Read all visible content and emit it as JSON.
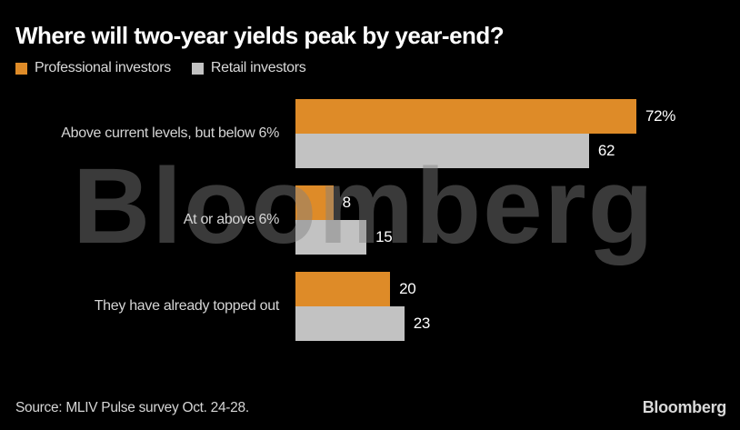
{
  "watermark": {
    "text": "Bloomberg"
  },
  "footer": {
    "source": "Source: MLIV Pulse survey Oct. 24-28.",
    "brand": "Bloomberg"
  },
  "chart_data": {
    "type": "bar",
    "orientation": "horizontal",
    "title": "Where will two-year yields peak by year-end?",
    "categories": [
      "Above current levels, but below 6%",
      "At or above 6%",
      "They have already topped out"
    ],
    "series": [
      {
        "name": "Professional investors",
        "color": "#de8b28",
        "values": [
          72,
          8,
          20
        ],
        "value_labels": [
          "72%",
          "8",
          "20"
        ]
      },
      {
        "name": "Retail investors",
        "color": "#c2c2c2",
        "values": [
          62,
          15,
          23
        ],
        "value_labels": [
          "62",
          "15",
          "23"
        ]
      }
    ],
    "xlim": [
      0,
      72
    ],
    "value_unit": "%",
    "grid": false,
    "legend_position": "top-left",
    "background": "#000000",
    "text_color": "#d5d5d5",
    "value_label_color": "#ffffff"
  }
}
